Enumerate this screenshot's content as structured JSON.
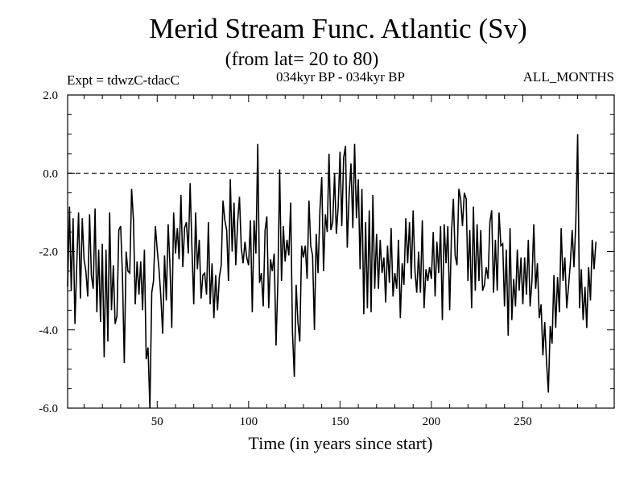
{
  "chart_data": {
    "type": "line",
    "title": "Merid Stream Func. Atlantic (Sv)",
    "subtitle": "(from lat= 20 to 80)",
    "annotations": {
      "left": "Expt = tdwzC-tdacC",
      "center": "034kyr BP - 034kyr BP",
      "right": "ALL_MONTHS"
    },
    "xlabel": "Time (in years since start)",
    "ylabel": "",
    "xlim": [
      1,
      300
    ],
    "ylim": [
      -6,
      2
    ],
    "xticks": [
      {
        "value": 50,
        "label": "50"
      },
      {
        "value": 100,
        "label": "100"
      },
      {
        "value": 150,
        "label": "150"
      },
      {
        "value": 200,
        "label": "200"
      },
      {
        "value": 250,
        "label": "250"
      }
    ],
    "yticks": [
      {
        "value": 2,
        "label": "2.0"
      },
      {
        "value": 0,
        "label": "0.0"
      },
      {
        "value": -2,
        "label": "-2.0"
      },
      {
        "value": -4,
        "label": "-4.0"
      },
      {
        "value": -6,
        "label": "-6.0"
      }
    ],
    "reference_line": {
      "y": 0,
      "style": "dashed"
    },
    "grid": false,
    "x_start": 1,
    "x_step": 1,
    "values": [
      -2.9,
      -1.2,
      -2.5,
      -1.6,
      -3.0,
      -2.6,
      -1.0,
      -2.5,
      -1.7,
      -2.0,
      -3.1,
      -2.2,
      -1.3,
      -2.7,
      -2.5,
      -1.6,
      -3.2,
      -2.1,
      -2.9,
      -2.2,
      -3.1,
      -2.6,
      -2.2,
      -1.8,
      -2.3,
      -2.9,
      -3.7,
      -2.8,
      -2.4,
      -1.1,
      -3.0,
      -3.8,
      -3.1,
      -1.6,
      -2.2,
      -1.0,
      -1.4,
      -2.6,
      -2.7,
      -2.3,
      -2.6,
      -3.2,
      -3.0,
      -3.9,
      -4.7,
      -3.0,
      -3.6,
      -2.5,
      -2.2,
      -1.5,
      -2.3,
      -4.1,
      -3.4,
      -2.5,
      -2.3,
      -1.9,
      -2.5,
      -3.4,
      -2.0,
      -1.7,
      -1.6,
      -1.4,
      -1.5,
      -2.0,
      -1.7,
      -1.8,
      -1.3,
      -1.1,
      -2.0,
      -2.4,
      -1.5,
      -2.1,
      -2.5,
      -2.2,
      -2.8,
      -3.0,
      -2.5,
      -2.2,
      -3.1,
      -2.6,
      -2.6,
      -3.3,
      -3.1,
      -2.9,
      -1.8,
      -1.6,
      -1.0,
      -2.1,
      -1.9,
      -1.9,
      -1.7,
      -1.2,
      -1.4,
      -1.6,
      -1.3,
      -1.3,
      -2.4,
      -1.3,
      -3.0,
      -2.1,
      -1.6,
      -2.6,
      -1.8,
      -1.9,
      -0.8,
      -2.3,
      -2.9,
      -2.3,
      -1.9,
      -1.9,
      -2.8,
      -2.4,
      -2.2,
      -2.6,
      -3.5,
      -3.0,
      -1.2,
      -2.1,
      -1.7,
      -1.8,
      -2.3,
      -1.9,
      -1.7,
      -3.0,
      -3.8,
      -3.4,
      -3.9,
      -3.6,
      -2.7,
      -1.8,
      -2.3,
      -2.1,
      -1.6,
      -1.7,
      -2.4,
      -3.2,
      -2.2,
      -2.2,
      -1.5,
      -1.0,
      -2.1,
      -1.8,
      -1.2,
      -0.3,
      -0.8,
      -1.6,
      -1.0,
      -1.0,
      -1.3,
      -0.9,
      -1.0,
      -0.4,
      -0.4,
      -1.1,
      -1.2,
      -0.8,
      -1.0,
      -0.6,
      -0.6,
      -0.4,
      -1.5,
      -1.1,
      -1.7,
      -1.8,
      -1.9,
      -1.6,
      -2.8,
      -1.8,
      -2.5,
      -1.9,
      -2.1,
      -2.7,
      -2.3,
      -2.8,
      -2.5,
      -2.3,
      -2.5,
      -2.3,
      -2.5,
      -2.9,
      -2.5,
      -2.7,
      -3.1,
      -2.6,
      -2.1,
      -2.0,
      -2.1,
      -1.8,
      -1.8,
      -1.9,
      -2.6,
      -2.3,
      -2.6,
      -2.7,
      -2.0,
      -2.4,
      -2.8,
      -2.2,
      -3.3,
      -2.0,
      -1.8,
      -2.3,
      -2.5,
      -2.2,
      -1.9,
      -2.8,
      -2.1,
      -2.0,
      -2.0,
      -2.3,
      -1.9,
      -1.4,
      -1.2,
      -1.1,
      -1.0,
      -1.0,
      -0.9,
      -1.3,
      -1.6,
      -1.1,
      -2.6,
      -2.8,
      -1.3,
      -2.3,
      -2.2,
      -2.5,
      -2.0,
      -2.2,
      -3.2,
      -3.0,
      -1.8,
      -1.8,
      -1.9,
      -2.3,
      -2.1,
      -1.9,
      -1.7,
      -1.5,
      -2.6,
      -2.4,
      -2.6,
      -3.6,
      -2.3,
      -2.9,
      -3.1,
      -2.7,
      -2.9,
      -2.7,
      -2.7,
      -2.5,
      -2.9,
      -2.7,
      -2.3,
      -2.4,
      -3.1,
      -2.1,
      -2.5,
      -3.0,
      -2.8,
      -3.6,
      -4.1,
      -4.6,
      -4.5,
      -4.4,
      -3.5,
      -3.3,
      -3.2,
      -3.2,
      -3.1,
      -2.7,
      -2.2,
      -2.4,
      -2.8,
      -2.5,
      -3.4,
      -2.0,
      -2.2,
      -2.0,
      -2.2,
      -2.1,
      -3.0,
      -3.3,
      -3.5,
      -3.5,
      -3.0,
      -2.8,
      -2.7,
      -2.4,
      -2.1,
      -1.8
    ],
    "noise": [
      0.0,
      0.35,
      -0.5,
      0.45,
      -0.85,
      0.3,
      0.0,
      -0.7,
      0.55,
      -0.2,
      0.6,
      -0.95,
      0.25,
      0.1,
      -0.45,
      0.7,
      -0.35,
      0.15,
      -0.9,
      0.4,
      -1.6,
      0.65,
      -2.1,
      0.8,
      -1.2,
      0.55,
      -0.15,
      -0.85,
      0.95,
      -0.25,
      0.4,
      -1.05,
      1.1,
      -0.9,
      -0.35,
      0.6,
      0.2,
      -0.75,
      0.45,
      -0.8,
      0.35,
      -0.3,
      1.05,
      -0.85,
      0.25,
      -3.1,
      0.55,
      -0.25,
      0.85,
      -0.45,
      -0.15,
      0.95,
      -0.7,
      0.4,
      -0.95,
      0.6,
      0.1,
      -0.55,
      1.0,
      -0.35,
      0.2,
      -0.8,
      0.95,
      -0.4,
      0.3,
      0.55,
      -0.75,
      0.85,
      0.1,
      -0.95,
      0.5,
      -0.35,
      0.8,
      -1.0,
      0.2,
      0.45,
      -0.6,
      0.95,
      -0.25,
      0.3,
      -1.1,
      0.7,
      -0.4,
      0.25,
      -0.55,
      0.9,
      -0.2,
      0.65,
      -0.85,
      1.75,
      -0.3,
      0.45,
      -0.95,
      0.35,
      0.7,
      -0.6,
      0.1,
      -0.45,
      0.85,
      -0.25,
      0.4,
      -0.95,
      0.6,
      -0.15,
      1.55,
      -0.5,
      0.35,
      -1.1,
      0.45,
      0.8,
      -0.65,
      0.2,
      -0.3,
      0.55,
      -0.9,
      0.25,
      1.3,
      -0.65,
      0.35,
      -0.45,
      0.6,
      -0.2,
      0.95,
      -1.05,
      -1.4,
      0.55,
      0.1,
      -0.7,
      0.85,
      -0.35,
      0.45,
      -0.6,
      0.9,
      -0.15,
      0.3,
      -0.8,
      0.65,
      -0.35,
      0.55,
      0.9,
      -0.4,
      0.75,
      -0.3,
      0.8,
      -0.65,
      0.35,
      1.0,
      -0.55,
      0.45,
      1.45,
      -0.35,
      0.8,
      1.1,
      -0.8,
      0.65,
      1.05,
      -0.4,
      1.35,
      -0.55,
      0.25,
      -0.95,
      0.7,
      -1.9,
      0.55,
      -1.55,
      0.65,
      -0.75,
      1.25,
      -0.45,
      0.35,
      -0.85,
      1.0,
      -0.25,
      0.65,
      -0.8,
      0.45,
      -0.3,
      0.9,
      -0.65,
      0.35,
      -0.45,
      1.0,
      -0.6,
      0.3,
      -0.75,
      0.85,
      -0.2,
      0.55,
      -0.9,
      0.95,
      0.1,
      -0.75,
      0.6,
      -0.35,
      0.8,
      -1.05,
      0.35,
      -0.55,
      0.9,
      -0.7,
      0.3,
      -0.85,
      0.75,
      -0.35,
      0.55,
      -0.95,
      0.8,
      -0.3,
      0.65,
      -1.2,
      0.4,
      0.75,
      -0.9,
      -1.25,
      0.6,
      0.35,
      -0.45,
      0.8,
      0.95,
      -1.65,
      1.15,
      -0.65,
      0.45,
      -0.7,
      0.9,
      -0.25,
      0.55,
      -0.8,
      0.35,
      0.6,
      -0.9,
      0.55,
      0.95,
      -0.75,
      0.4,
      -1.1,
      0.7,
      -0.35,
      0.8,
      -1.0,
      0.65,
      -0.55,
      0.9,
      -0.85,
      0.4,
      -0.7,
      0.95,
      -0.3,
      0.55,
      -0.85,
      0.75,
      -0.4,
      0.6,
      -1.0,
      0.35,
      0.8,
      -0.45,
      0.7,
      -0.9,
      0.25,
      -0.55,
      0.8,
      -0.35,
      -1.2,
      -0.4,
      -1.05,
      0.6,
      -0.75,
      0.45,
      -0.85,
      0.8,
      -0.35,
      0.65,
      -0.95,
      0.5,
      -0.3,
      0.75,
      -0.4,
      0.95,
      3.1,
      -0.45,
      0.85,
      -0.25,
      0.6,
      -0.95,
      0.4,
      -0.55,
      0.7,
      -0.35,
      0.05
    ]
  }
}
